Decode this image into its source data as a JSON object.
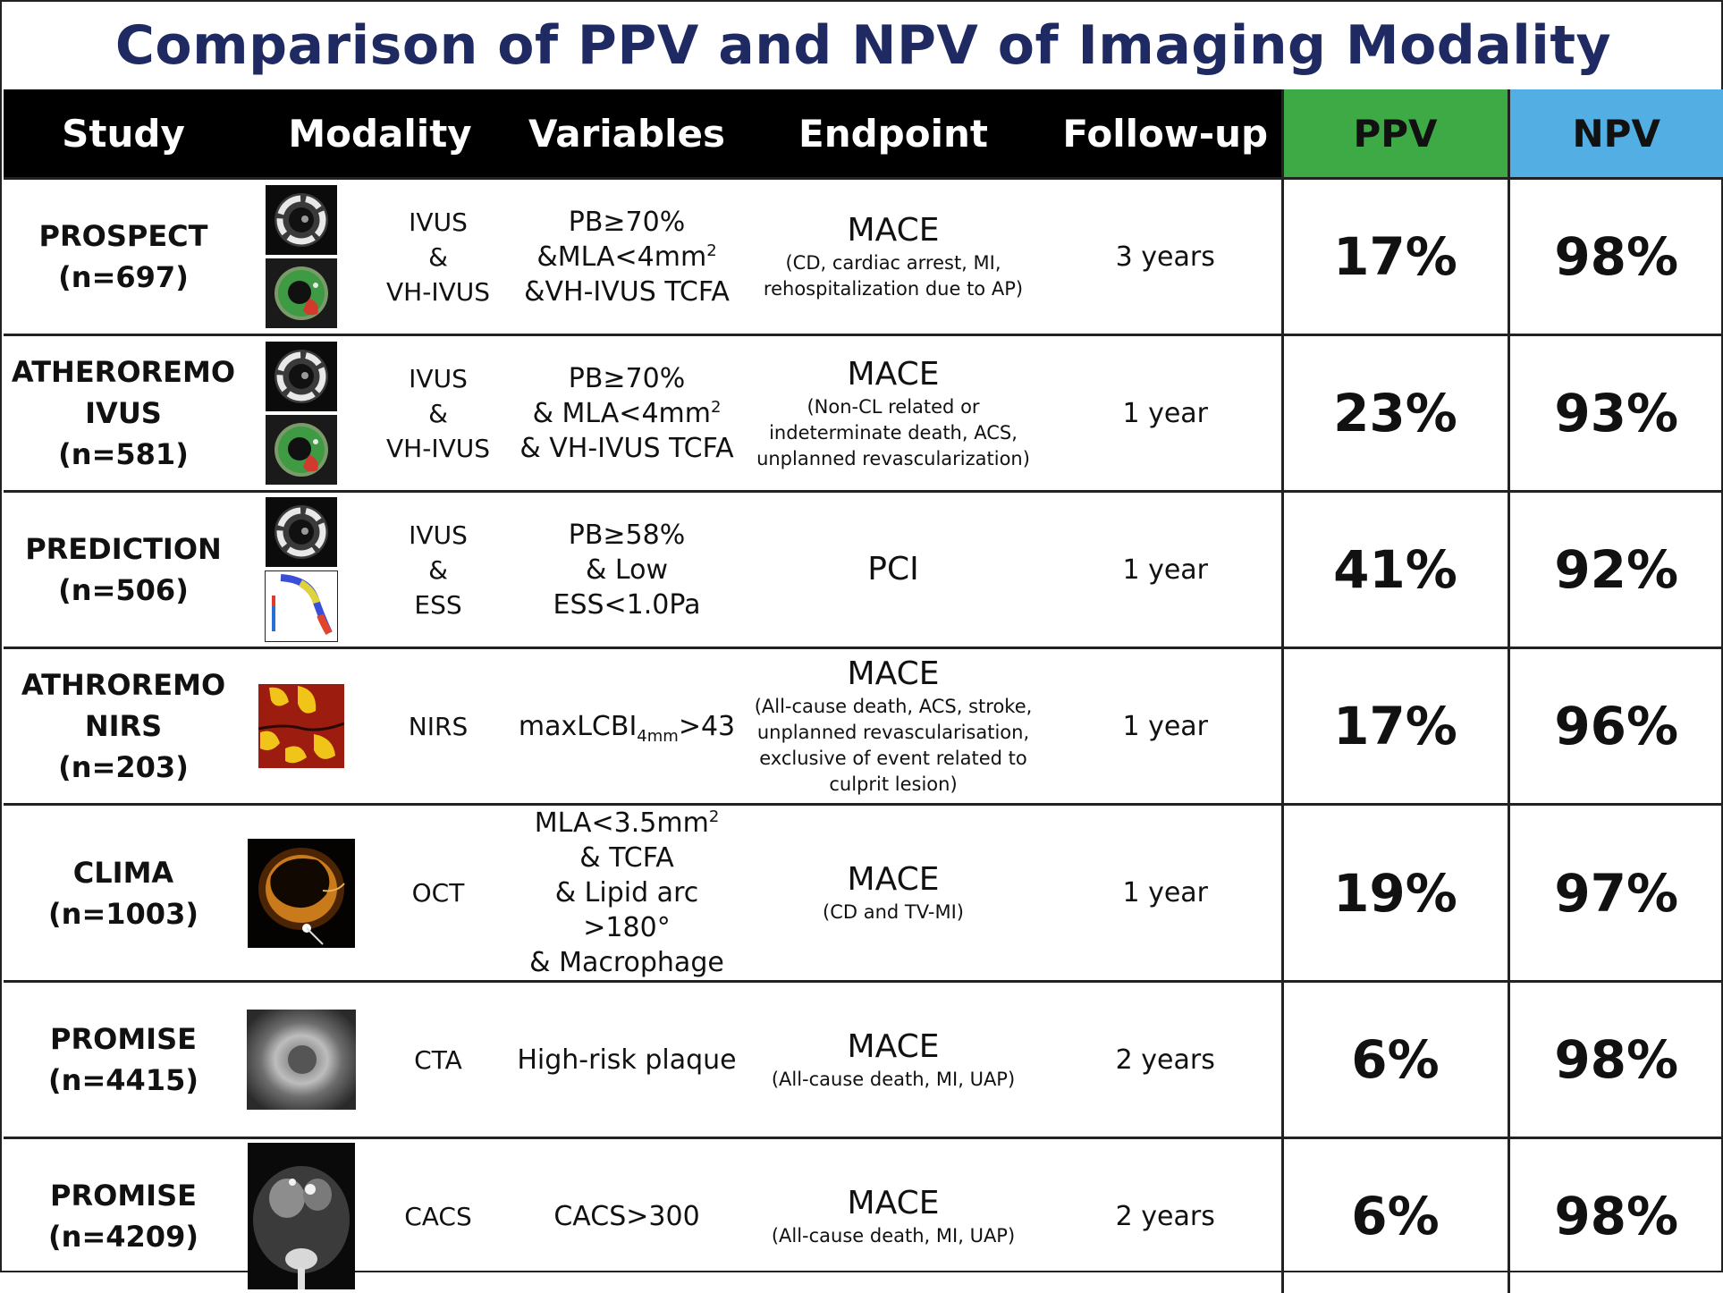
{
  "title": "Comparison of PPV and NPV of Imaging Modality",
  "colors": {
    "title": "#1f2a63",
    "header_bg": "#000000",
    "ppv_header": "#3daa46",
    "npv_header": "#52aee3"
  },
  "chart_data": {
    "type": "table",
    "columns": [
      "Study",
      "Modality",
      "Variables",
      "Endpoint",
      "Follow-up",
      "PPV",
      "NPV"
    ],
    "rows": [
      {
        "study": [
          "PROSPECT",
          "(n=697)"
        ],
        "thumbnails": [
          "ivus-image",
          "vh-ivus-image"
        ],
        "modality": [
          "IVUS",
          "&",
          "VH-IVUS"
        ],
        "variables": [
          {
            "text": "PB≥70%"
          },
          {
            "text": "&MLA<4mm",
            "sup": "2"
          },
          {
            "text": "&VH-IVUS TCFA"
          }
        ],
        "endpoint_main": "MACE",
        "endpoint_sub": [
          "(CD, cardiac arrest, MI,",
          "rehospitalization due to AP)"
        ],
        "followup": "3 years",
        "ppv": "17%",
        "npv": "98%"
      },
      {
        "study": [
          "ATHEROREMO",
          "IVUS",
          "(n=581)"
        ],
        "thumbnails": [
          "ivus-image",
          "vh-ivus-image"
        ],
        "modality": [
          "IVUS",
          "&",
          "VH-IVUS"
        ],
        "variables": [
          {
            "text": "PB≥70%"
          },
          {
            "text": "& MLA<4mm",
            "sup": "2"
          },
          {
            "text": "& VH-IVUS TCFA"
          }
        ],
        "endpoint_main": "MACE",
        "endpoint_sub": [
          "(Non-CL related or",
          "indeterminate death, ACS,",
          "unplanned revascularization)"
        ],
        "followup": "1 year",
        "ppv": "23%",
        "npv": "93%"
      },
      {
        "study": [
          "PREDICTION",
          "(n=506)"
        ],
        "thumbnails": [
          "ivus-image",
          "ess-map-image"
        ],
        "modality": [
          "IVUS",
          "&",
          "ESS"
        ],
        "variables": [
          {
            "text": "PB≥58%"
          },
          {
            "text": "& Low ESS<1.0Pa"
          }
        ],
        "endpoint_main": "PCI",
        "endpoint_sub": [],
        "followup": "1 year",
        "ppv": "41%",
        "npv": "92%"
      },
      {
        "study": [
          "ATHROREMO",
          "NIRS",
          "(n=203)"
        ],
        "thumbnails": [
          "nirs-chemogram-image"
        ],
        "modality": [
          "NIRS"
        ],
        "variables": [
          {
            "text": "maxLCBI",
            "sub": "4mm",
            "after": ">43"
          }
        ],
        "endpoint_main": "MACE",
        "endpoint_sub": [
          "(All-cause death, ACS, stroke,",
          "unplanned revascularisation,",
          "exclusive of event related to",
          "culprit lesion)"
        ],
        "followup": "1 year",
        "ppv": "17%",
        "npv": "96%"
      },
      {
        "study": [
          "CLIMA",
          "(n=1003)"
        ],
        "thumbnails": [
          "oct-image"
        ],
        "modality": [
          "OCT"
        ],
        "variables": [
          {
            "text": "MLA<3.5mm",
            "sup": "2"
          },
          {
            "text": "& TCFA"
          },
          {
            "text": "& Lipid arc >180°"
          },
          {
            "text": "& Macrophage"
          }
        ],
        "endpoint_main": "MACE",
        "endpoint_sub": [
          "(CD and TV-MI)"
        ],
        "followup": "1 year",
        "ppv": "19%",
        "npv": "97%"
      },
      {
        "study": [
          "PROMISE",
          "(n=4415)"
        ],
        "thumbnails": [
          "cta-image"
        ],
        "modality": [
          "CTA"
        ],
        "variables": [
          {
            "text": "High-risk plaque"
          }
        ],
        "endpoint_main": "MACE",
        "endpoint_sub": [
          "(All-cause death, MI, UAP)"
        ],
        "followup": "2 years",
        "ppv": "6%",
        "npv": "98%"
      },
      {
        "study": [
          "PROMISE",
          "(n=4209)"
        ],
        "thumbnails": [
          "cacs-ct-image"
        ],
        "modality": [
          "CACS"
        ],
        "variables": [
          {
            "text": "CACS>300"
          }
        ],
        "endpoint_main": "MACE",
        "endpoint_sub": [
          "(All-cause death, MI, UAP)"
        ],
        "followup": "2 years",
        "ppv": "6%",
        "npv": "98%"
      }
    ]
  }
}
